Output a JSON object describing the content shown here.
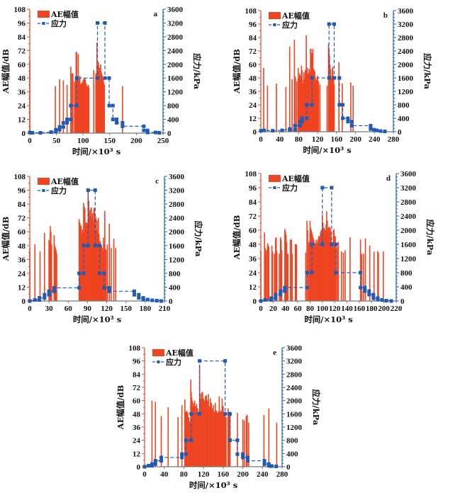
{
  "colors": {
    "bar": "#EE4422",
    "stress": "#1F5BB5",
    "left_axis": "#EE4422",
    "right_axis": "#1F5BB5"
  },
  "chart_data": [
    {
      "panel": "a",
      "type": "bar+line",
      "xlabel": "时间/×10³ s",
      "ylabel": "AE幅值/dB",
      "y2label": "应力/kPa",
      "xlim": [
        0,
        250
      ],
      "xticks": [
        0,
        50,
        100,
        150,
        200,
        250
      ],
      "ylim": [
        0,
        108
      ],
      "yticks": [
        0,
        12,
        24,
        36,
        48,
        60,
        72,
        84,
        96,
        108
      ],
      "y2lim": [
        0,
        3600
      ],
      "y2ticks": [
        0,
        400,
        800,
        1200,
        1600,
        2000,
        2400,
        2800,
        3200,
        3600
      ],
      "legend": [
        "AE幅值",
        "应力"
      ],
      "legend_position": "top-left",
      "bars": {
        "name": "AE幅值",
        "x": [
          0,
          48,
          56,
          63,
          70,
          77,
          79,
          81,
          84,
          86,
          87,
          88,
          89,
          90,
          91,
          92,
          93,
          94,
          95,
          96,
          97,
          98,
          99,
          100,
          101,
          102,
          103,
          104,
          105,
          106,
          107,
          108,
          110,
          111,
          120,
          124,
          126,
          127,
          128,
          129,
          130,
          131,
          132,
          133,
          134,
          135,
          136,
          137,
          138,
          139,
          140,
          174
        ],
        "values": [
          64,
          41,
          47,
          46,
          42,
          58,
          52,
          52,
          45,
          49,
          71,
          70,
          48,
          50,
          69,
          45,
          48,
          50,
          40,
          43,
          42,
          44,
          43,
          46,
          47,
          48,
          45,
          47,
          44,
          43,
          40,
          41,
          42,
          40,
          55,
          52,
          79,
          60,
          58,
          62,
          55,
          57,
          50,
          60,
          54,
          52,
          50,
          48,
          46,
          44,
          42,
          41
        ]
      },
      "stress": {
        "name": "应力",
        "x": [
          0,
          5,
          20,
          40,
          49,
          49,
          56,
          56,
          63,
          63,
          70,
          70,
          77,
          77,
          88,
          88,
          127,
          127,
          141,
          141,
          149,
          149,
          156,
          156,
          163,
          163,
          174,
          174,
          214,
          214,
          221,
          221,
          236,
          243
        ],
        "values": [
          20,
          10,
          10,
          30,
          40,
          100,
          100,
          180,
          180,
          300,
          300,
          400,
          400,
          800,
          800,
          1600,
          1600,
          3200,
          3200,
          1600,
          1600,
          800,
          800,
          400,
          400,
          300,
          300,
          200,
          200,
          80,
          80,
          20,
          20,
          10
        ]
      }
    },
    {
      "panel": "b",
      "type": "bar+line",
      "xlabel": "时间/×10³ s",
      "ylabel": "AE幅值/dB",
      "y2label": "应力/kPa",
      "xlim": [
        0,
        280
      ],
      "xticks": [
        0,
        40,
        80,
        120,
        160,
        200,
        240,
        280
      ],
      "ylim": [
        0,
        108
      ],
      "yticks": [
        0,
        12,
        24,
        36,
        48,
        60,
        72,
        84,
        96,
        108
      ],
      "y2lim": [
        0,
        3600
      ],
      "y2ticks": [
        0,
        400,
        800,
        1200,
        1600,
        2000,
        2400,
        2800,
        3200,
        3600
      ],
      "legend": [
        "AE幅值",
        "应力"
      ],
      "legend_position": "top-left",
      "bars": {
        "name": "AE幅值",
        "x": [
          6,
          14,
          33,
          53,
          61,
          66,
          71,
          73,
          76,
          79,
          80,
          82,
          84,
          86,
          87,
          88,
          89,
          90,
          91,
          92,
          93,
          94,
          95,
          96,
          97,
          98,
          99,
          100,
          101,
          102,
          103,
          104,
          105,
          106,
          107,
          108,
          109,
          110,
          111,
          112,
          113,
          114,
          115,
          116,
          117,
          118,
          120,
          122,
          125,
          140,
          143,
          144,
          145,
          146,
          147,
          148,
          149,
          150,
          151,
          152,
          153,
          154,
          155,
          165,
          172,
          190,
          195
        ],
        "values": [
          57,
          41,
          43,
          40,
          76,
          47,
          82,
          49,
          45,
          57,
          48,
          52,
          50,
          59,
          55,
          42,
          43,
          46,
          53,
          47,
          45,
          55,
          48,
          86,
          50,
          57,
          44,
          52,
          46,
          56,
          53,
          50,
          74,
          74,
          50,
          70,
          48,
          74,
          51,
          56,
          52,
          54,
          48,
          46,
          44,
          47,
          50,
          45,
          42,
          41,
          78,
          73,
          68,
          60,
          56,
          50,
          49,
          48,
          56,
          58,
          50,
          49,
          42,
          62,
          43,
          44,
          41
        ]
      },
      "stress": {
        "name": "应力",
        "x": [
          0,
          7,
          25,
          45,
          61,
          61,
          72,
          72,
          83,
          83,
          87,
          87,
          97,
          97,
          108,
          108,
          144,
          144,
          155,
          155,
          166,
          166,
          173,
          173,
          184,
          184,
          192,
          192,
          232,
          232,
          239,
          245,
          253,
          262
        ],
        "values": [
          30,
          40,
          30,
          40,
          80,
          60,
          60,
          180,
          180,
          300,
          300,
          400,
          400,
          800,
          800,
          1600,
          1600,
          3200,
          3200,
          1600,
          1600,
          800,
          800,
          400,
          400,
          300,
          300,
          180,
          180,
          80,
          60,
          40,
          20,
          10
        ]
      }
    },
    {
      "panel": "c",
      "type": "bar+line",
      "xlabel": "时间/×10³ s",
      "ylabel": "AE幅值/dB",
      "y2label": "应力/kPa",
      "xlim": [
        0,
        210
      ],
      "xticks": [
        0,
        30,
        60,
        90,
        120,
        150,
        180,
        210
      ],
      "ylim": [
        0,
        108
      ],
      "yticks": [
        0,
        12,
        24,
        36,
        48,
        60,
        72,
        84,
        96,
        108
      ],
      "y2lim": [
        0,
        3600
      ],
      "y2ticks": [
        0,
        400,
        800,
        1200,
        1600,
        2000,
        2400,
        2800,
        3200,
        3600
      ],
      "legend": [
        "AE幅值",
        "应力"
      ],
      "legend_position": "top-left",
      "bars": {
        "name": "AE幅值",
        "x": [
          0,
          8,
          16,
          23,
          30,
          31,
          32,
          33,
          34,
          38,
          39,
          40,
          41,
          42,
          77,
          78,
          79,
          80,
          81,
          82,
          83,
          84,
          85,
          86,
          87,
          88,
          89,
          90,
          91,
          92,
          93,
          94,
          95,
          96,
          97,
          98,
          99,
          100,
          101,
          102,
          103,
          104,
          105,
          106,
          107,
          108,
          109,
          110,
          111,
          112,
          113,
          114,
          115,
          116,
          117,
          118,
          119,
          121,
          124,
          127,
          131,
          134
        ],
        "values": [
          46,
          49,
          43,
          59,
          53,
          51,
          65,
          60,
          49,
          57,
          48,
          46,
          44,
          41,
          71,
          68,
          66,
          65,
          58,
          62,
          60,
          85,
          82,
          80,
          66,
          68,
          68,
          66,
          94,
          87,
          78,
          74,
          80,
          81,
          72,
          76,
          68,
          80,
          81,
          60,
          73,
          62,
          70,
          60,
          72,
          58,
          50,
          52,
          49,
          48,
          46,
          43,
          55,
          49,
          78,
          45,
          44,
          49,
          67,
          46,
          54,
          46
        ]
      },
      "stress": {
        "name": "应力",
        "x": [
          0,
          8,
          15,
          15,
          23,
          23,
          30,
          30,
          38,
          38,
          77,
          77,
          84,
          84,
          91,
          91,
          102,
          102,
          109,
          109,
          116,
          116,
          124,
          124,
          163,
          163,
          170,
          170,
          177,
          177,
          184,
          191,
          198,
          205
        ],
        "values": [
          0,
          30,
          30,
          90,
          90,
          180,
          180,
          280,
          280,
          380,
          380,
          800,
          800,
          1600,
          1600,
          3200,
          3200,
          1600,
          1600,
          800,
          800,
          380,
          380,
          280,
          280,
          180,
          180,
          90,
          90,
          40,
          40,
          20,
          10,
          0
        ]
      }
    },
    {
      "panel": "d",
      "type": "bar+line",
      "xlabel": "时间/×10³ s",
      "ylabel": "AE幅值/dB",
      "y2label": "应力/kPa",
      "xlim": [
        0,
        220
      ],
      "xticks": [
        0,
        20,
        40,
        60,
        80,
        100,
        120,
        140,
        160,
        180,
        200,
        220
      ],
      "ylim": [
        0,
        108
      ],
      "yticks": [
        0,
        12,
        24,
        36,
        48,
        60,
        72,
        84,
        96,
        108
      ],
      "y2lim": [
        0,
        3600
      ],
      "y2ticks": [
        0,
        400,
        800,
        1200,
        1600,
        2000,
        2400,
        2800,
        3200,
        3600
      ],
      "legend": [
        "AE幅值",
        "应力"
      ],
      "legend_position": "top-left",
      "bars": {
        "name": "AE幅值",
        "x": [
          0,
          6,
          7,
          8,
          9,
          11,
          12,
          13,
          18,
          19,
          22,
          24,
          25,
          26,
          30,
          32,
          33,
          34,
          39,
          40,
          41,
          42,
          43,
          44,
          48,
          50,
          51,
          56,
          57,
          58,
          73,
          75,
          76,
          78,
          79,
          80,
          81,
          82,
          83,
          84,
          85,
          86,
          87,
          88,
          89,
          90,
          91,
          92,
          93,
          94,
          95,
          96,
          97,
          98,
          99,
          100,
          101,
          102,
          103,
          104,
          105,
          106,
          107,
          108,
          109,
          110,
          111,
          112,
          113,
          114,
          115,
          116,
          117,
          118,
          119,
          120,
          121,
          122,
          124,
          126,
          131,
          134,
          137,
          145,
          162,
          164,
          167,
          170,
          177,
          184,
          190,
          191,
          199
        ],
        "values": [
          42,
          58,
          45,
          41,
          43,
          49,
          47,
          46,
          47,
          42,
          40,
          53,
          54,
          42,
          40,
          54,
          52,
          43,
          61,
          59,
          56,
          50,
          40,
          40,
          52,
          52,
          40,
          48,
          48,
          48,
          41,
          68,
          60,
          50,
          49,
          68,
          62,
          60,
          58,
          56,
          54,
          52,
          50,
          48,
          48,
          52,
          47,
          50,
          52,
          55,
          53,
          55,
          58,
          60,
          60,
          73,
          66,
          61,
          62,
          60,
          60,
          65,
          76,
          68,
          60,
          62,
          63,
          58,
          62,
          58,
          50,
          50,
          45,
          60,
          61,
          55,
          55,
          45,
          46,
          50,
          42,
          41,
          43,
          54,
          52,
          40,
          40,
          53,
          47,
          42,
          42,
          41,
          42
        ]
      },
      "stress": {
        "name": "应力",
        "x": [
          0,
          7,
          17,
          17,
          24,
          24,
          32,
          32,
          39,
          39,
          75,
          75,
          83,
          83,
          100,
          100,
          115,
          115,
          122,
          122,
          162,
          162,
          169,
          169,
          176,
          176,
          183,
          183,
          190,
          190,
          197,
          204,
          212
        ],
        "values": [
          0,
          30,
          30,
          80,
          80,
          180,
          180,
          280,
          280,
          380,
          380,
          800,
          800,
          1600,
          1600,
          3200,
          3200,
          1600,
          1600,
          800,
          800,
          380,
          380,
          280,
          280,
          180,
          180,
          80,
          80,
          40,
          30,
          10,
          0
        ]
      }
    },
    {
      "panel": "e",
      "type": "bar+line",
      "xlabel": "时间/×10³ s",
      "ylabel": "AE幅值/dB",
      "y2label": "应力/kPa",
      "xlim": [
        0,
        280
      ],
      "xticks": [
        0,
        40,
        80,
        120,
        160,
        200,
        240,
        280
      ],
      "ylim": [
        0,
        108
      ],
      "yticks": [
        0,
        12,
        24,
        36,
        48,
        60,
        72,
        84,
        96,
        108
      ],
      "y2lim": [
        0,
        3600
      ],
      "y2ticks": [
        0,
        400,
        800,
        1200,
        1600,
        2000,
        2400,
        2800,
        3200,
        3600
      ],
      "legend": [
        "AE幅值",
        "应力"
      ],
      "legend_position": "top-left",
      "bars": {
        "name": "AE幅值",
        "x": [
          15,
          22,
          34,
          48,
          68,
          76,
          82,
          84,
          86,
          88,
          90,
          92,
          93,
          94,
          95,
          96,
          97,
          98,
          99,
          100,
          102,
          104,
          106,
          108,
          110,
          112,
          113,
          114,
          116,
          118,
          120,
          122,
          124,
          126,
          128,
          130,
          132,
          134,
          136,
          138,
          140,
          142,
          144,
          146,
          148,
          150,
          152,
          154,
          156,
          158,
          160,
          162,
          164,
          166,
          170,
          172,
          174,
          189,
          200,
          203,
          207,
          209,
          212,
          243,
          253,
          269
        ],
        "values": [
          60,
          59,
          46,
          54,
          45,
          56,
          61,
          50,
          51,
          49,
          45,
          41,
          41,
          79,
          68,
          63,
          60,
          55,
          52,
          58,
          60,
          55,
          57,
          53,
          50,
          92,
          66,
          61,
          67,
          68,
          62,
          60,
          64,
          65,
          60,
          66,
          55,
          62,
          58,
          53,
          56,
          50,
          58,
          51,
          49,
          50,
          64,
          50,
          51,
          62,
          55,
          48,
          47,
          45,
          53,
          50,
          48,
          49,
          43,
          42,
          46,
          47,
          40,
          47,
          53,
          40
        ]
      },
      "stress": {
        "name": "应力",
        "x": [
          0,
          8,
          15,
          15,
          22,
          22,
          34,
          34,
          76,
          76,
          84,
          84,
          95,
          95,
          112,
          112,
          164,
          164,
          174,
          174,
          189,
          189,
          200,
          200,
          210,
          210,
          244,
          244,
          253,
          253,
          256,
          259,
          268
        ],
        "values": [
          0,
          30,
          30,
          80,
          80,
          180,
          180,
          280,
          280,
          380,
          380,
          800,
          800,
          1600,
          1600,
          3200,
          3200,
          1600,
          1600,
          800,
          800,
          380,
          380,
          280,
          280,
          180,
          180,
          80,
          80,
          30,
          20,
          20,
          10
        ]
      }
    }
  ]
}
